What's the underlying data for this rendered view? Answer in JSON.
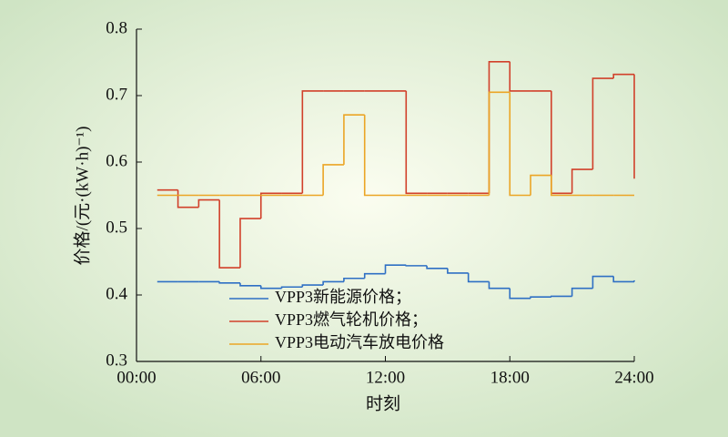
{
  "chart_data": {
    "type": "step",
    "x_label": "时刻",
    "y_label": "价格/(元·(kW·h)⁻¹)",
    "x": [
      1,
      2,
      3,
      4,
      5,
      6,
      7,
      8,
      9,
      10,
      11,
      12,
      13,
      14,
      15,
      16,
      17,
      18,
      19,
      20,
      21,
      22,
      23,
      24
    ],
    "series": [
      {
        "name": "VPP3新能源价格；",
        "color": "#2e6fc4",
        "values": [
          0.42,
          0.42,
          0.42,
          0.418,
          0.414,
          0.41,
          0.412,
          0.415,
          0.42,
          0.425,
          0.432,
          0.445,
          0.444,
          0.44,
          0.433,
          0.42,
          0.41,
          0.395,
          0.397,
          0.398,
          0.41,
          0.428,
          0.42,
          0.422
        ]
      },
      {
        "name": "VPP3燃气轮机价格；",
        "color": "#d1402a",
        "values": [
          0.558,
          0.532,
          0.543,
          0.441,
          0.515,
          0.553,
          0.553,
          0.707,
          0.707,
          0.707,
          0.707,
          0.707,
          0.553,
          0.553,
          0.553,
          0.553,
          0.751,
          0.707,
          0.707,
          0.553,
          0.589,
          0.726,
          0.732,
          0.575
        ]
      },
      {
        "name": "VPP3电动汽车放电价格",
        "color": "#eba525",
        "values": [
          0.55,
          0.55,
          0.55,
          0.55,
          0.55,
          0.55,
          0.55,
          0.55,
          0.596,
          0.671,
          0.55,
          0.55,
          0.55,
          0.55,
          0.55,
          0.55,
          0.705,
          0.55,
          0.58,
          0.55,
          0.55,
          0.55,
          0.55,
          0.55
        ]
      }
    ],
    "xlim": [
      0,
      24
    ],
    "xticks": [
      {
        "value": 0,
        "label": "00:00"
      },
      {
        "value": 6,
        "label": "06:00"
      },
      {
        "value": 12,
        "label": "12:00"
      },
      {
        "value": 18,
        "label": "18:00"
      },
      {
        "value": 24,
        "label": "24:00"
      }
    ],
    "ylim": [
      0.3,
      0.8
    ],
    "yticks": [
      0.3,
      0.4,
      0.5,
      0.6,
      0.7,
      0.8
    ]
  }
}
